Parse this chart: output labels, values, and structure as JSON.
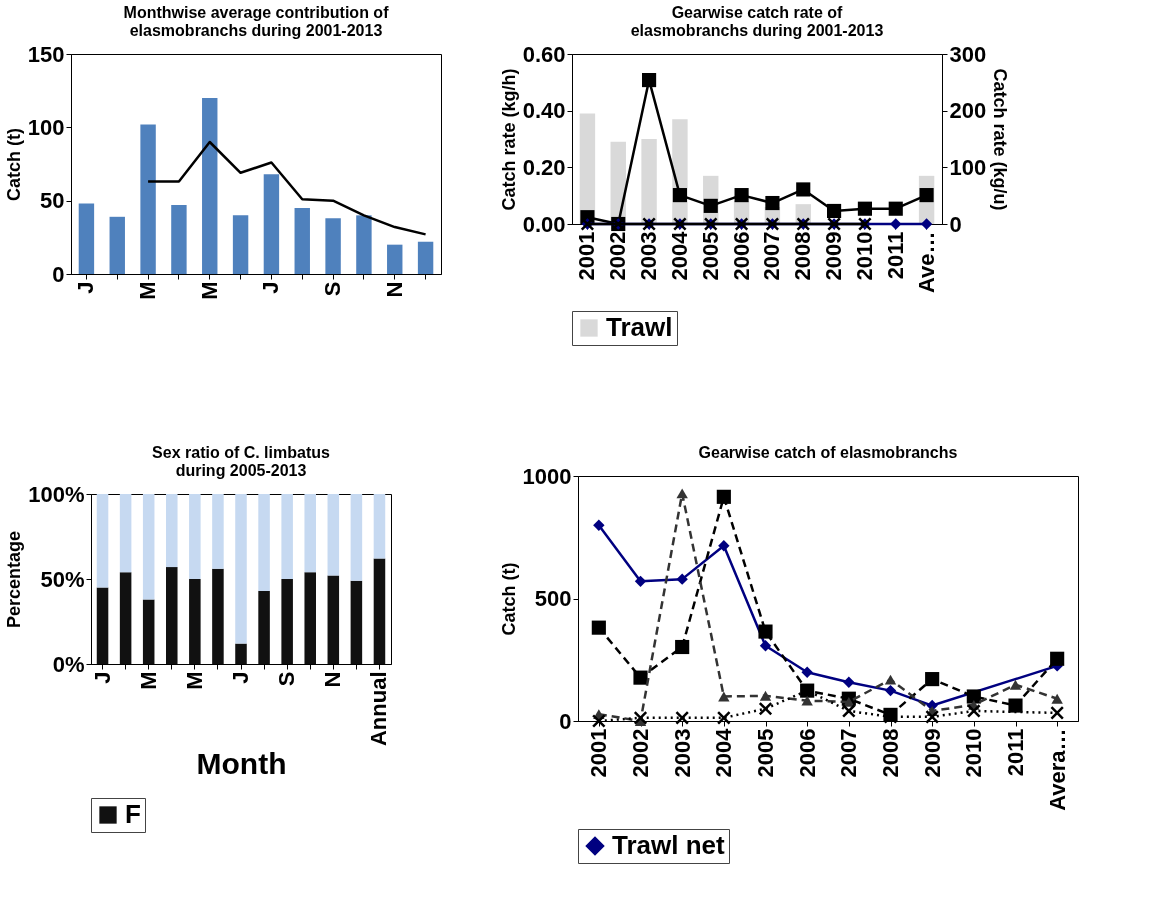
{
  "chart_data": [
    {
      "type": "bar",
      "title": "Monthwise average contribution of elasmobranchs during 2001-2013",
      "ylabel": "Catch (t)",
      "categories": [
        "J",
        null,
        "M",
        null,
        "M",
        null,
        "J",
        null,
        "S",
        null,
        "N",
        null
      ],
      "ylim": [
        0,
        150
      ],
      "yticks": [
        0,
        50,
        100,
        150
      ],
      "series": [
        {
          "color": "#4f81bd",
          "values": [
            48,
            39,
            102,
            47,
            120,
            40,
            68,
            45,
            38,
            40,
            20,
            22
          ]
        },
        {
          "type": "line",
          "color": "#000000",
          "values": [
            null,
            null,
            63,
            63,
            90,
            69,
            76,
            51,
            50,
            40,
            32,
            27
          ]
        }
      ]
    },
    {
      "type": "bar",
      "title": "Gearwise catch rate of elasmobranchs during 2001-2013",
      "ylabel": "Catch rate (kg/h)",
      "y2label": "Catch rate (kg/u)",
      "categories": [
        "2001",
        "2002",
        "2003",
        "2004",
        "2005",
        "2006",
        "2007",
        "2008",
        "2009",
        "2010",
        "2011",
        "Ave…"
      ],
      "ylim": [
        0,
        0.6
      ],
      "yticks": [
        {
          "value": 0,
          "label": "0.00"
        },
        {
          "value": 0.2,
          "label": "0.20"
        },
        {
          "value": 0.4,
          "label": "0.40"
        },
        {
          "value": 0.6,
          "label": "0.60"
        }
      ],
      "y2lim": [
        0,
        300
      ],
      "y2ticks": [
        0,
        100,
        200,
        300
      ],
      "legend": "bottom",
      "series": [
        {
          "name": "Trawl",
          "color": "#d9d9d9",
          "values": [
            0.39,
            0.29,
            0.3,
            0.37,
            0.17,
            0.08,
            0.06,
            0.07,
            null,
            null,
            null,
            0.17
          ]
        },
        {
          "type": "line",
          "axis": "y2",
          "marker": "square",
          "line_style": "solid",
          "color": "#000000",
          "values": [
            12,
            0,
            254,
            51,
            32,
            51,
            37,
            61,
            23,
            27,
            27,
            51
          ]
        },
        {
          "type": "line",
          "axis": "y2",
          "marker": "diamond",
          "line_style": "solid",
          "color": "#000080",
          "values": [
            0,
            0,
            0,
            0,
            0,
            0,
            0,
            0,
            0,
            0,
            0,
            0
          ]
        },
        {
          "type": "line",
          "axis": "y2",
          "marker": "cross",
          "line_style": "solid",
          "color": "#000000",
          "values": [
            0,
            0,
            0,
            0,
            0,
            0,
            0,
            0,
            0,
            0,
            null,
            null
          ]
        }
      ]
    },
    {
      "type": "bar",
      "stacked": true,
      "title": "Sex ratio of C. limbatus during 2005-2013",
      "xlabel": "Month",
      "ylabel": "Percentage",
      "categories": [
        "J",
        null,
        "M",
        null,
        "M",
        null,
        "J",
        null,
        "S",
        null,
        "N",
        null,
        "Annual"
      ],
      "ylim": [
        0,
        100
      ],
      "yticks": [
        {
          "value": 0,
          "label": "0%"
        },
        {
          "value": 50,
          "label": "50%"
        },
        {
          "value": 100,
          "label": "100%"
        }
      ],
      "legend": "bottom",
      "series": [
        {
          "name": "F",
          "color": "#111111",
          "values": [
            45,
            54,
            38,
            57,
            50,
            56,
            12,
            43,
            50,
            54,
            52,
            49,
            62
          ]
        },
        {
          "color": "#c6d9f1",
          "values": [
            55,
            46,
            62,
            43,
            50,
            44,
            88,
            57,
            50,
            46,
            48,
            51,
            38
          ]
        }
      ]
    },
    {
      "type": "line",
      "title": "Gearwise catch of elasmobranchs",
      "ylabel": "Catch (t)",
      "categories": [
        "2001",
        "2002",
        "2003",
        "2004",
        "2005",
        "2006",
        "2007",
        "2008",
        "2009",
        "2010",
        "2011",
        "Avera…"
      ],
      "ylim": [
        0,
        1000
      ],
      "yticks": [
        0,
        500,
        1000
      ],
      "legend": "bottom",
      "series": [
        {
          "name": "Trawl net",
          "marker": "diamond",
          "line_style": "solid",
          "color": "#000080",
          "values": [
            799,
            570,
            579,
            715,
            307,
            199,
            158,
            124,
            63,
            null,
            null,
            225
          ]
        },
        {
          "marker": "square",
          "line_style": "dashed",
          "color": "#000000",
          "values": [
            381,
            177,
            302,
            915,
            365,
            124,
            91,
            25,
            171,
            100,
            63,
            254
          ]
        },
        {
          "marker": "triangle",
          "line_style": "dashed",
          "color": "#333333",
          "values": [
            28,
            0,
            929,
            100,
            103,
            83,
            78,
            169,
            41,
            66,
            148,
            91
          ]
        },
        {
          "marker": "cross",
          "line_style": "dotted",
          "color": "#000000",
          "values": [
            0,
            13,
            13,
            13,
            50,
            124,
            41,
            17,
            17,
            41,
            null,
            33
          ]
        }
      ]
    }
  ]
}
